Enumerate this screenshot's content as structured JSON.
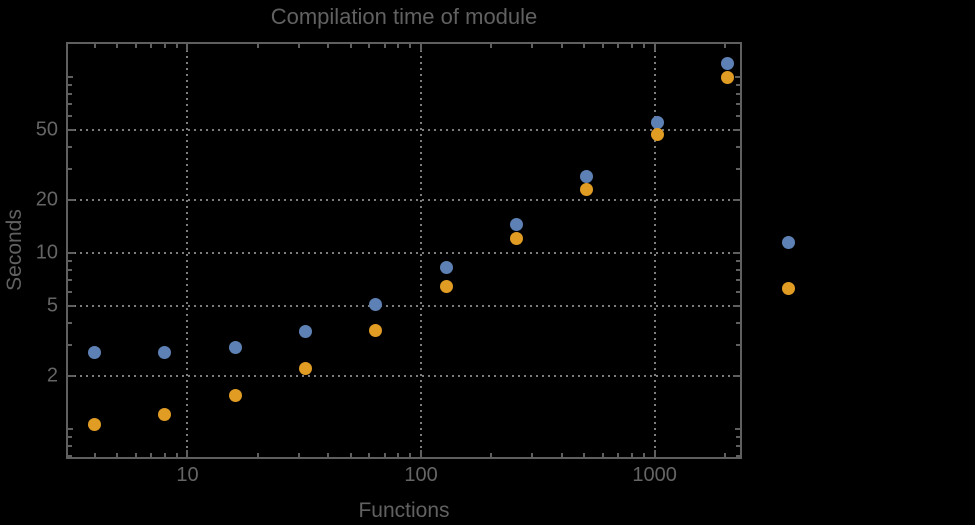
{
  "figure": {
    "background_color": "#000000",
    "text_color": "#616161",
    "frame_color": "#5f5f5f",
    "grid_color": "#7d7d7d"
  },
  "chart_data": {
    "type": "scatter",
    "title": "Compilation time of module",
    "xlabel": "Functions",
    "ylabel": "Seconds",
    "x_scale": "log",
    "y_scale": "log",
    "xlim": [
      3.08,
      2320
    ],
    "ylim": [
      0.69,
      154
    ],
    "grid": "dotted lines at labeled major ticks",
    "x_major_ticks": [
      10,
      100,
      1000
    ],
    "x_major_tick_labels": [
      "10",
      "100",
      "1000"
    ],
    "y_major_ticks": [
      2,
      5,
      10,
      20,
      50
    ],
    "y_major_tick_labels": [
      "2",
      "5",
      "10",
      "20",
      "50"
    ],
    "x": [
      4,
      8,
      16,
      32,
      64,
      128,
      256,
      512,
      1024,
      2048
    ],
    "series": [
      {
        "name": "blue",
        "color": "#5E81B5",
        "values": [
          2.7,
          2.7,
          2.9,
          3.55,
          5.1,
          8.3,
          14.5,
          27,
          55,
          120
        ]
      },
      {
        "name": "orange",
        "color": "#E19C24",
        "values": [
          1.05,
          1.2,
          1.55,
          2.2,
          3.6,
          6.4,
          12,
          23,
          47,
          99
        ]
      }
    ],
    "legend": {
      "position": "outside-right",
      "labels_visible": false,
      "markers": [
        "blue",
        "orange"
      ]
    }
  }
}
